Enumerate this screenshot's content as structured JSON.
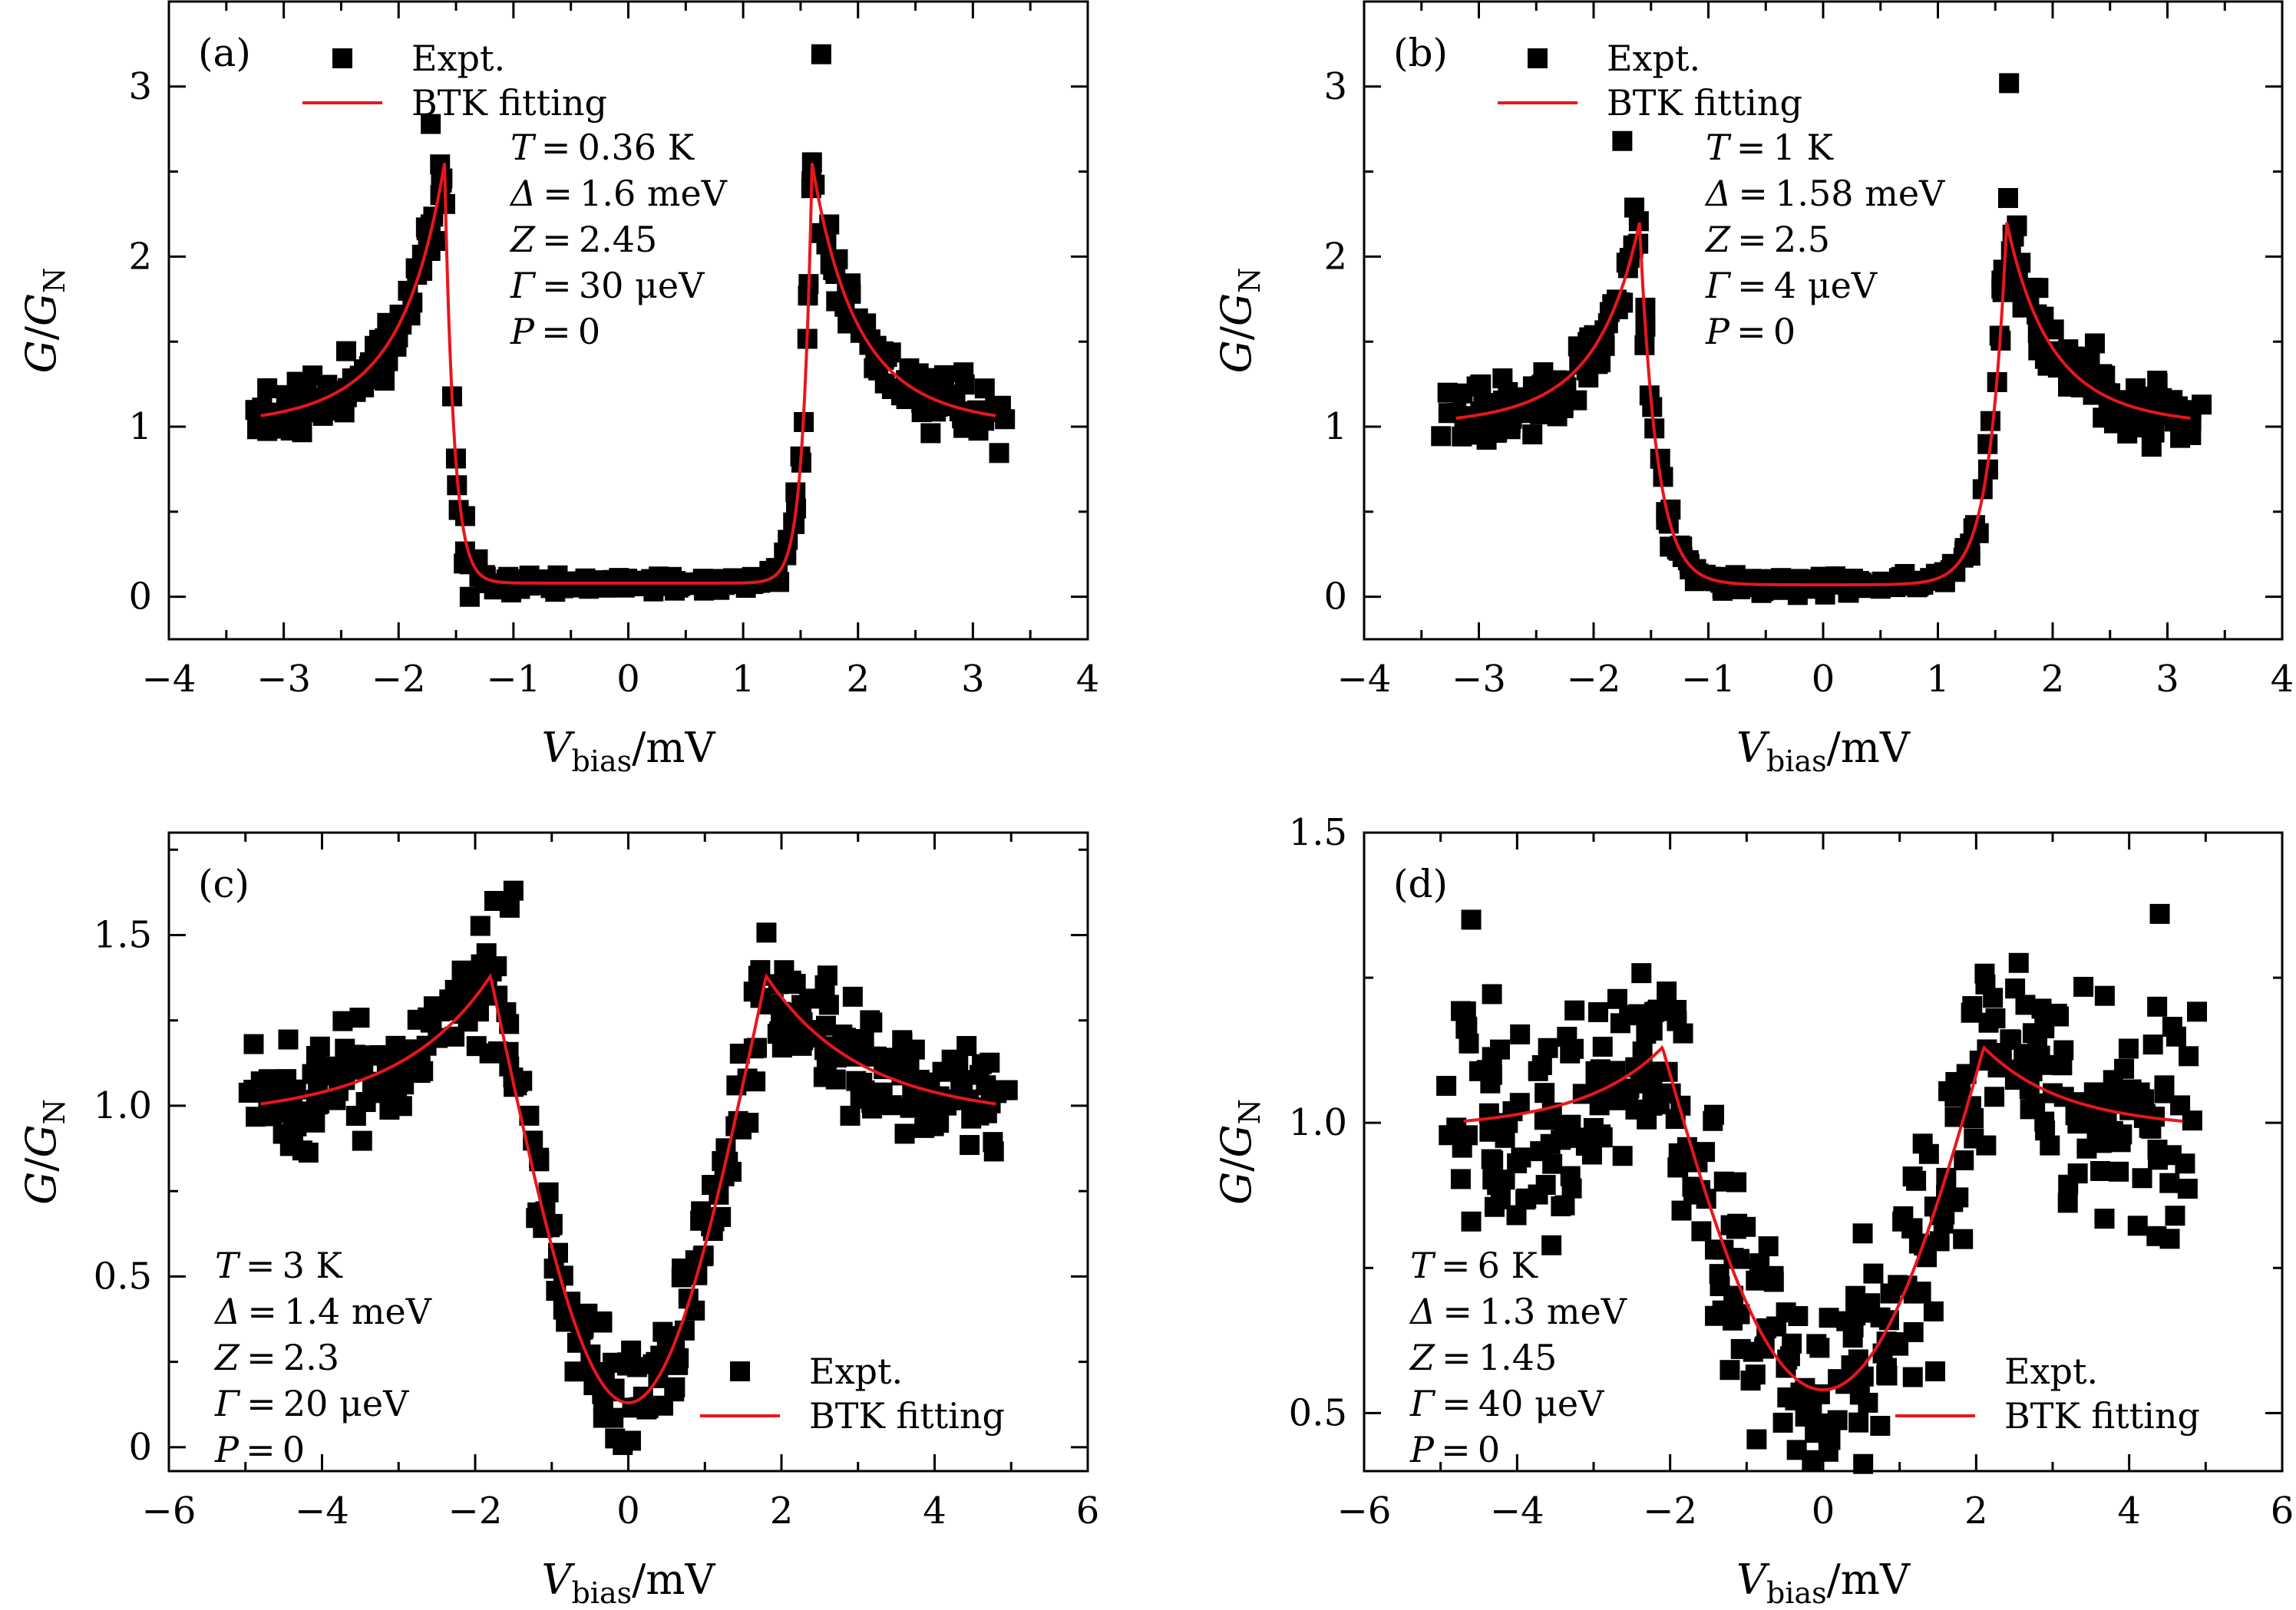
{
  "colors": {
    "expt_marker": "#000000",
    "fit_line": "#e8161b",
    "axis": "#000000",
    "background": "#ffffff"
  },
  "axis_labels": {
    "x_var": "V",
    "x_sub": "bias",
    "x_unit": "/mV",
    "y_var": "G",
    "y_mid": "/",
    "y_var2": "G",
    "y_sub": "N"
  },
  "chart_data": [
    {
      "type": "scatter",
      "panel": "(a)",
      "xlim": [
        -4,
        4
      ],
      "ylim": [
        -0.25,
        3.5
      ],
      "xticks": [
        -4,
        -3,
        -2,
        -1,
        0,
        1,
        2,
        3,
        4
      ],
      "yticks": [
        0,
        1,
        2,
        3
      ],
      "ytick_labels": [
        "0",
        "1",
        "2",
        "3"
      ],
      "legend": {
        "position": "top-center",
        "entries": [
          "Expt.",
          "BTK fitting"
        ]
      },
      "params": [
        {
          "sym": "T",
          "val": "0.36 K"
        },
        {
          "sym": "Δ",
          "val": "1.6 meV"
        },
        {
          "sym": "Z",
          "val": "2.45"
        },
        {
          "sym": "Γ",
          "val": "30 μeV"
        },
        {
          "sym": "P",
          "val": "0"
        }
      ],
      "params_position": "top-center",
      "fit": {
        "delta": 1.6,
        "gamma": 0.08,
        "peak": 2.55,
        "floor": 0.08,
        "xmax": 3.2,
        "form": "peak"
      },
      "scatter_model": {
        "xmin": -3.25,
        "xmax": 3.25,
        "n": 320,
        "noise": 0.13,
        "seed": 11
      },
      "outliers": [
        [
          1.68,
          3.19
        ],
        [
          -1.72,
          2.78
        ]
      ],
      "series": [
        {
          "name": "Expt.",
          "style": "scatter"
        },
        {
          "name": "BTK fitting",
          "style": "line"
        }
      ]
    },
    {
      "type": "scatter",
      "panel": "(b)",
      "xlim": [
        -4,
        4
      ],
      "ylim": [
        -0.25,
        3.5
      ],
      "xticks": [
        -4,
        -3,
        -2,
        -1,
        0,
        1,
        2,
        3,
        4
      ],
      "yticks": [
        0,
        1,
        2,
        3
      ],
      "ytick_labels": [
        "0",
        "1",
        "2",
        "3"
      ],
      "legend": {
        "position": "top-center",
        "entries": [
          "Expt.",
          "BTK fitting"
        ]
      },
      "params": [
        {
          "sym": "T",
          "val": "1 K"
        },
        {
          "sym": "Δ",
          "val": "1.58 meV"
        },
        {
          "sym": "Z",
          "val": "2.5"
        },
        {
          "sym": "Γ",
          "val": "4 μeV"
        },
        {
          "sym": "P",
          "val": "0"
        }
      ],
      "params_position": "top-center",
      "fit": {
        "delta": 1.6,
        "gamma": 0.15,
        "peak": 2.2,
        "floor": 0.07,
        "xmax": 3.2,
        "form": "peak"
      },
      "scatter_model": {
        "xmin": -3.25,
        "xmax": 3.25,
        "n": 340,
        "noise": 0.15,
        "seed": 23
      },
      "outliers": [
        [
          1.62,
          3.02
        ],
        [
          -1.75,
          2.68
        ]
      ],
      "series": [
        {
          "name": "Expt.",
          "style": "scatter"
        },
        {
          "name": "BTK fitting",
          "style": "line"
        }
      ]
    },
    {
      "type": "scatter",
      "panel": "(c)",
      "xlim": [
        -6,
        6
      ],
      "ylim": [
        -0.07,
        1.8
      ],
      "xticks": [
        -6,
        -4,
        -2,
        0,
        2,
        4,
        6
      ],
      "yticks": [
        0,
        0.5,
        1.0,
        1.5
      ],
      "ytick_labels": [
        "0",
        "0.5",
        "1.0",
        "1.5"
      ],
      "legend": {
        "position": "bottom-right",
        "entries": [
          "Expt.",
          "BTK fitting"
        ]
      },
      "params": [
        {
          "sym": "T",
          "val": "3 K"
        },
        {
          "sym": "Δ",
          "val": "1.4 meV"
        },
        {
          "sym": "Z",
          "val": "2.3"
        },
        {
          "sym": "Γ",
          "val": "20 μeV"
        },
        {
          "sym": "P",
          "val": "0"
        }
      ],
      "params_position": "bottom-left",
      "fit": {
        "delta": 1.8,
        "gamma": 0.9,
        "peak": 1.38,
        "floor": 0.13,
        "xmax": 4.8,
        "form": "broad",
        "width": 0.9
      },
      "scatter_model": {
        "xmin": -4.9,
        "xmax": 4.9,
        "n": 330,
        "noise": 0.13,
        "seed": 37
      },
      "outliers": [
        [
          -1.5,
          1.63
        ],
        [
          -1.75,
          1.6
        ],
        [
          -1.55,
          1.58
        ]
      ],
      "series": [
        {
          "name": "Expt.",
          "style": "scatter"
        },
        {
          "name": "BTK fitting",
          "style": "line"
        }
      ]
    },
    {
      "type": "scatter",
      "panel": "(d)",
      "xlim": [
        -6,
        6
      ],
      "ylim": [
        0.4,
        1.5
      ],
      "xticks": [
        -6,
        -4,
        -2,
        0,
        2,
        4,
        6
      ],
      "yticks": [
        0.5,
        1.0,
        1.5
      ],
      "ytick_labels": [
        "0.5",
        "1.0",
        "1.5"
      ],
      "legend": {
        "position": "bottom-right",
        "entries": [
          "Expt.",
          "BTK fitting"
        ]
      },
      "params": [
        {
          "sym": "T",
          "val": "6 K"
        },
        {
          "sym": "Δ",
          "val": "1.3 meV"
        },
        {
          "sym": "Z",
          "val": "1.45"
        },
        {
          "sym": "Γ",
          "val": "40 μeV"
        },
        {
          "sym": "P",
          "val": "0"
        }
      ],
      "params_position": "bottom-left",
      "fit": {
        "delta": 2.1,
        "gamma": 2.2,
        "peak": 1.13,
        "floor": 0.54,
        "xmax": 4.7,
        "form": "broad",
        "width": 1.15
      },
      "scatter_model": {
        "xmin": -4.8,
        "xmax": 4.8,
        "n": 360,
        "noise": 0.14,
        "seed": 53
      },
      "outliers": [
        [
          -4.6,
          1.35
        ],
        [
          4.4,
          1.36
        ],
        [
          -4.6,
          0.83
        ],
        [
          4.6,
          0.84
        ]
      ],
      "series": [
        {
          "name": "Expt.",
          "style": "scatter"
        },
        {
          "name": "BTK fitting",
          "style": "line"
        }
      ]
    }
  ]
}
